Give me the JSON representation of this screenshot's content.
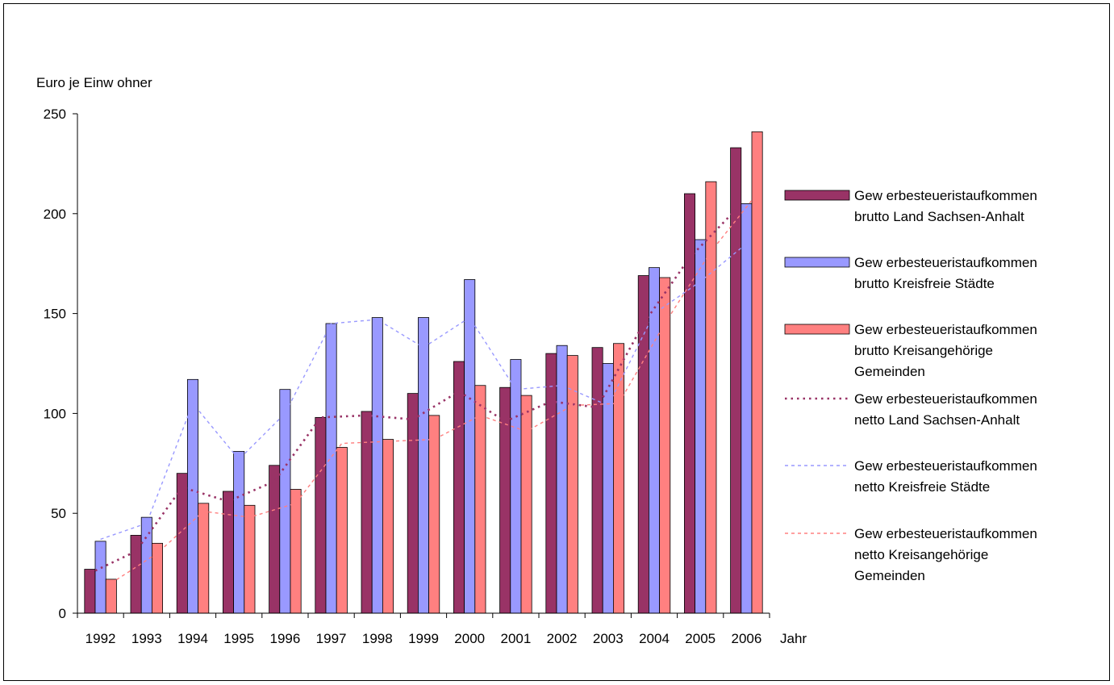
{
  "chart_data": {
    "type": "bar",
    "ylabel": "Euro je Einw ohner",
    "xlabel": "Jahr",
    "ylim": [
      0,
      250
    ],
    "yticks": [
      0,
      50,
      100,
      150,
      200,
      250
    ],
    "grid": false,
    "legend_position": "right",
    "categories": [
      "1992",
      "1993",
      "1994",
      "1995",
      "1996",
      "1997",
      "1998",
      "1999",
      "2000",
      "2001",
      "2002",
      "2003",
      "2004",
      "2005",
      "2006"
    ],
    "series": [
      {
        "name": [
          "Gew erbesteueristaufkommen",
          "brutto Land Sachsen-Anhalt"
        ],
        "kind": "bar",
        "color": "#993366",
        "values": [
          22,
          39,
          70,
          61,
          74,
          98,
          101,
          110,
          126,
          113,
          130,
          133,
          169,
          210,
          233
        ]
      },
      {
        "name": [
          "Gew erbesteueristaufkommen",
          "brutto Kreisfreie Städte"
        ],
        "kind": "bar",
        "color": "#9999ff",
        "values": [
          36,
          48,
          117,
          81,
          112,
          145,
          148,
          148,
          167,
          127,
          134,
          125,
          173,
          187,
          205
        ]
      },
      {
        "name": [
          "Gew erbesteueristaufkommen",
          "brutto Kreisangehörige",
          "Gemeinden"
        ],
        "kind": "bar",
        "color": "#ff8080",
        "values": [
          17,
          35,
          55,
          54,
          62,
          83,
          87,
          99,
          114,
          109,
          129,
          135,
          168,
          216,
          241
        ]
      },
      {
        "name": [
          "Gew erbesteueristaufkommen",
          "netto Land Sachsen-Anhalt"
        ],
        "kind": "line",
        "color": "#993366",
        "values": [
          20,
          31,
          63,
          56,
          66,
          98,
          99,
          97,
          111,
          96,
          106,
          103,
          145,
          178,
          202
        ]
      },
      {
        "name": [
          "Gew erbesteueristaufkommen",
          "netto Kreisfreie Städte"
        ],
        "kind": "line",
        "color": "#9999ff",
        "values": [
          37,
          45,
          105,
          77,
          100,
          145,
          147,
          133,
          148,
          112,
          114,
          104,
          150,
          166,
          185
        ]
      },
      {
        "name": [
          "Gew erbesteueristaufkommen",
          "netto Kreisangehörige",
          "Gemeinden"
        ],
        "kind": "line",
        "color": "#ff8080",
        "values": [
          15,
          30,
          51,
          48,
          55,
          85,
          86,
          87,
          99,
          91,
          104,
          105,
          145,
          181,
          210
        ]
      }
    ]
  }
}
